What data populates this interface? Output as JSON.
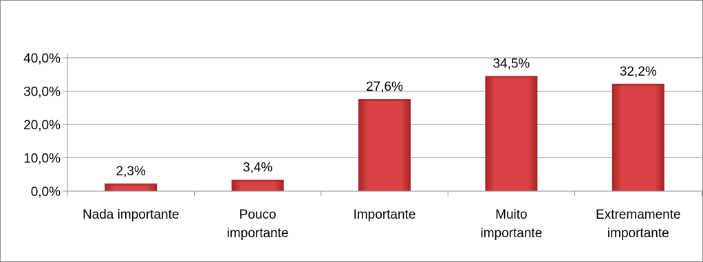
{
  "chart_data": {
    "type": "bar",
    "categories": [
      [
        "Nada importante"
      ],
      [
        "Pouco",
        "importante"
      ],
      [
        "Importante"
      ],
      [
        "Muito",
        "importante"
      ],
      [
        "Extremamente",
        "importante"
      ]
    ],
    "values": [
      2.3,
      3.4,
      27.6,
      34.5,
      32.2
    ],
    "data_labels": [
      "2,3%",
      "3,4%",
      "27,6%",
      "34,5%",
      "32,2%"
    ],
    "y_ticks": [
      "0,0%",
      "10,0%",
      "20,0%",
      "30,0%",
      "40,0%"
    ],
    "y_tick_values": [
      0,
      10,
      20,
      30,
      40
    ],
    "ylim": [
      0,
      40
    ],
    "grid": true,
    "legend": "none",
    "title": "",
    "xlabel": "",
    "ylabel": "",
    "colors": {
      "bar": "#d94346",
      "bar_dark": "#a62224",
      "grid": "#8c8c8c",
      "axis": "#8c8c8c"
    }
  }
}
